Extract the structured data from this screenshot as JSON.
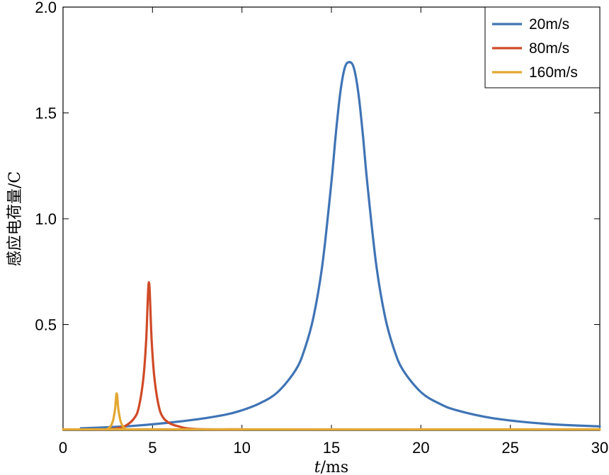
{
  "chart_data": {
    "type": "line",
    "xlabel": "t/ms",
    "ylabel": "感应电荷量/C",
    "xlim": [
      0,
      30
    ],
    "ylim": [
      0,
      2.0
    ],
    "x_ticks": [
      0,
      5,
      10,
      15,
      20,
      25,
      30
    ],
    "x_tick_labels": [
      "0",
      "5",
      "10",
      "15",
      "20",
      "25",
      "30"
    ],
    "y_ticks": [
      0.5,
      1.0,
      1.5,
      2.0
    ],
    "y_tick_labels": [
      "0.5",
      "1.0",
      "1.5",
      "2.0"
    ],
    "grid": false,
    "legend_position": "top-right",
    "series": [
      {
        "name": "20m/s",
        "color": "#3f74b5",
        "x": [
          1.0,
          4.0,
          7.0,
          9.0,
          10.0,
          11.0,
          12.0,
          13.0,
          13.5,
          14.0,
          14.5,
          15.0,
          15.25,
          15.5,
          15.75,
          16.0,
          16.25,
          16.5,
          16.75,
          17.0,
          17.5,
          18.0,
          18.5,
          19.0,
          20.0,
          21.0,
          22.0,
          24.0,
          27.0,
          30.0
        ],
        "y": [
          0.01,
          0.022,
          0.047,
          0.073,
          0.095,
          0.128,
          0.181,
          0.285,
          0.383,
          0.536,
          0.786,
          1.173,
          1.404,
          1.598,
          1.714,
          1.74,
          1.714,
          1.598,
          1.404,
          1.173,
          0.786,
          0.536,
          0.383,
          0.285,
          0.181,
          0.128,
          0.095,
          0.058,
          0.031,
          0.019
        ]
      },
      {
        "name": "80m/s",
        "color": "#d04a27",
        "x": [
          2.5,
          3.0,
          3.5,
          4.0,
          4.25,
          4.5,
          4.65,
          4.8,
          4.95,
          5.1,
          5.35,
          5.6,
          6.0,
          6.5,
          7.0,
          8.0,
          10.0
        ],
        "y": [
          0.0,
          0.01,
          0.022,
          0.06,
          0.115,
          0.254,
          0.43,
          0.7,
          0.43,
          0.254,
          0.115,
          0.06,
          0.032,
          0.018,
          0.009,
          0.003,
          0.0
        ]
      },
      {
        "name": "160m/s",
        "color": "#e3a832",
        "x": [
          0.0,
          2.0,
          2.5,
          2.75,
          2.9,
          3.0,
          3.1,
          3.25,
          3.5,
          4.0,
          30.0
        ],
        "y": [
          0.0,
          0.0,
          0.008,
          0.035,
          0.095,
          0.175,
          0.095,
          0.035,
          0.008,
          0.0,
          0.0
        ]
      }
    ]
  }
}
